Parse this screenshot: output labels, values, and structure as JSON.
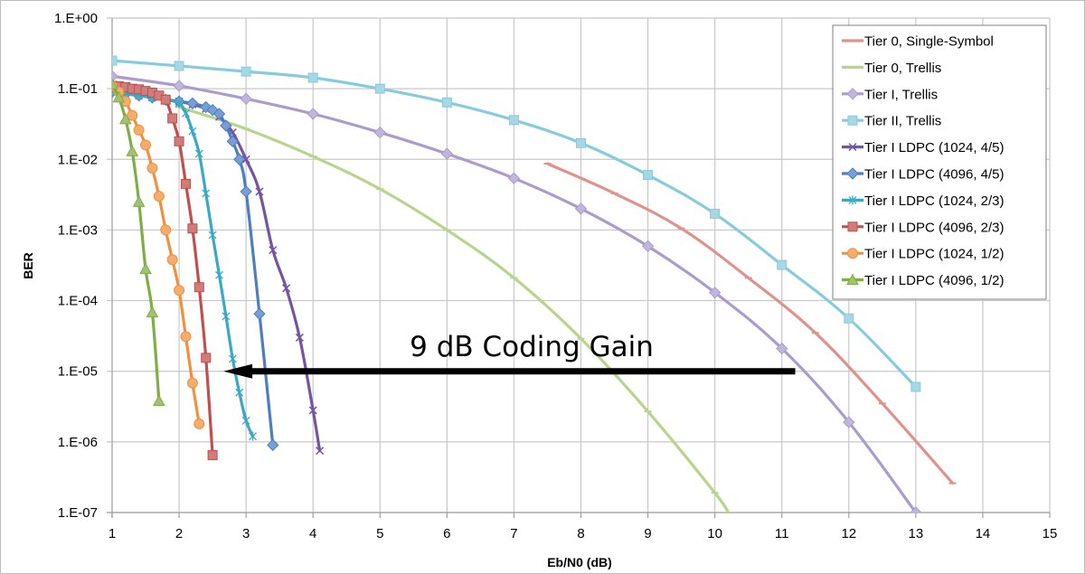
{
  "chart_data": {
    "type": "line",
    "title": "",
    "xlabel": "Eb/N0 (dB)",
    "ylabel": "BER",
    "yscale": "log",
    "xlim": [
      1,
      15
    ],
    "ylim": [
      1e-07,
      1
    ],
    "grid": true,
    "legend_position": "top-right",
    "x_ticks": [
      "1",
      "2",
      "3",
      "4",
      "5",
      "6",
      "7",
      "8",
      "9",
      "10",
      "11",
      "12",
      "13",
      "14",
      "15"
    ],
    "y_ticks": [
      "1.E+00",
      "1.E-01",
      "1.E-02",
      "1.E-03",
      "1.E-04",
      "1.E-05",
      "1.E-06",
      "1.E-07"
    ],
    "annotation": {
      "text": "9 dB Coding Gain",
      "arrow_from": [
        11.2,
        1e-05
      ],
      "arrow_to": [
        2.5,
        1e-05
      ]
    },
    "series": [
      {
        "name": "Tier 0, Single-Symbol",
        "color": "#e0928c",
        "marker": "dash",
        "smooth": true,
        "x": [
          7.5,
          8.5,
          9.5,
          10.5,
          11.5,
          12.5,
          13.55
        ],
        "y": [
          0.0087,
          0.0033,
          0.00105,
          0.00021,
          3.5e-05,
          3.5e-06,
          2.6e-07
        ]
      },
      {
        "name": "Tier 0, Trellis",
        "color": "#b9d48e",
        "marker": "dash",
        "smooth": true,
        "x": [
          2,
          3,
          4,
          5,
          6,
          7,
          8,
          9,
          10,
          10.2
        ],
        "y": [
          0.055,
          0.027,
          0.011,
          0.0038,
          0.001,
          0.00021,
          2.9e-05,
          2.7e-06,
          1.9e-07,
          1e-07
        ]
      },
      {
        "name": "Tier I, Trellis",
        "color": "#ab9ccd",
        "marker": "diamond",
        "smooth": true,
        "x": [
          1,
          2,
          3,
          4,
          5,
          6,
          7,
          8,
          9,
          10,
          11,
          12,
          13
        ],
        "y": [
          0.15,
          0.11,
          0.072,
          0.044,
          0.024,
          0.012,
          0.0054,
          0.002,
          0.00059,
          0.00013,
          2.1e-05,
          1.9e-06,
          1e-07
        ]
      },
      {
        "name": "Tier II, Trellis",
        "color": "#86cbde",
        "marker": "square",
        "smooth": true,
        "x": [
          1,
          2,
          3,
          4,
          5,
          6,
          7,
          8,
          9,
          10,
          11,
          12,
          13
        ],
        "y": [
          0.25,
          0.21,
          0.175,
          0.143,
          0.1,
          0.064,
          0.036,
          0.017,
          0.006,
          0.0017,
          0.00032,
          5.6e-05,
          6e-06
        ]
      },
      {
        "name": "Tier I LDPC (1024, 4/5)",
        "color": "#7454a3",
        "marker": "x",
        "smooth": true,
        "x": [
          1.0,
          1.2,
          1.4,
          1.6,
          1.8,
          2.0,
          2.2,
          2.4,
          2.6,
          2.8,
          3.0,
          3.2,
          3.4,
          3.6,
          3.8,
          4.0,
          4.1
        ],
        "y": [
          0.09,
          0.085,
          0.08,
          0.075,
          0.07,
          0.066,
          0.06,
          0.052,
          0.04,
          0.024,
          0.01,
          0.0035,
          0.00052,
          0.00015,
          3e-05,
          2.8e-06,
          7.5e-07
        ]
      },
      {
        "name": "Tier I LDPC (4096, 4/5)",
        "color": "#4b7fc1",
        "marker": "diamond",
        "smooth": true,
        "x": [
          1.0,
          1.2,
          1.4,
          1.6,
          1.8,
          2.0,
          2.2,
          2.4,
          2.5,
          2.6,
          2.7,
          2.8,
          2.9,
          3.0,
          3.2,
          3.4
        ],
        "y": [
          0.09,
          0.085,
          0.08,
          0.075,
          0.07,
          0.066,
          0.062,
          0.055,
          0.05,
          0.044,
          0.03,
          0.018,
          0.01,
          0.0035,
          6.5e-05,
          9e-07
        ]
      },
      {
        "name": "Tier I LDPC (1024, 2/3)",
        "color": "#3aa9c3",
        "marker": "asterisk",
        "smooth": true,
        "x": [
          1.0,
          1.2,
          1.4,
          1.6,
          1.8,
          2.0,
          2.1,
          2.2,
          2.3,
          2.4,
          2.5,
          2.6,
          2.7,
          2.8,
          2.9,
          3.0,
          3.1
        ],
        "y": [
          0.09,
          0.085,
          0.08,
          0.075,
          0.07,
          0.062,
          0.045,
          0.025,
          0.012,
          0.0033,
          0.00085,
          0.00023,
          6e-05,
          1.5e-05,
          5e-06,
          2e-06,
          1.2e-06
        ]
      },
      {
        "name": "Tier I LDPC (4096, 2/3)",
        "color": "#c0504d",
        "marker": "square",
        "smooth": true,
        "x": [
          1.0,
          1.1,
          1.2,
          1.3,
          1.4,
          1.5,
          1.6,
          1.7,
          1.8,
          1.9,
          2.0,
          2.1,
          2.2,
          2.3,
          2.4,
          2.5
        ],
        "y": [
          0.11,
          0.108,
          0.105,
          0.1,
          0.098,
          0.093,
          0.088,
          0.08,
          0.07,
          0.038,
          0.018,
          0.0045,
          0.00105,
          0.000155,
          1.55e-05,
          6.5e-07
        ]
      },
      {
        "name": "Tier I LDPC (1024, 1/2)",
        "color": "#f0913d",
        "marker": "circle",
        "smooth": true,
        "x": [
          1.0,
          1.1,
          1.2,
          1.3,
          1.4,
          1.5,
          1.6,
          1.7,
          1.8,
          1.9,
          2.0,
          2.1,
          2.2,
          2.3
        ],
        "y": [
          0.11,
          0.09,
          0.066,
          0.042,
          0.026,
          0.016,
          0.0075,
          0.003,
          0.001,
          0.00038,
          0.00014,
          3.1e-05,
          6.8e-06,
          1.8e-06
        ]
      },
      {
        "name": "Tier I LDPC (4096, 1/2)",
        "color": "#82ac45",
        "marker": "triangle",
        "smooth": true,
        "x": [
          1.0,
          1.1,
          1.2,
          1.3,
          1.4,
          1.5,
          1.6,
          1.7
        ],
        "y": [
          0.115,
          0.075,
          0.037,
          0.013,
          0.0025,
          0.00028,
          6.8e-05,
          3.8e-06
        ]
      }
    ]
  }
}
